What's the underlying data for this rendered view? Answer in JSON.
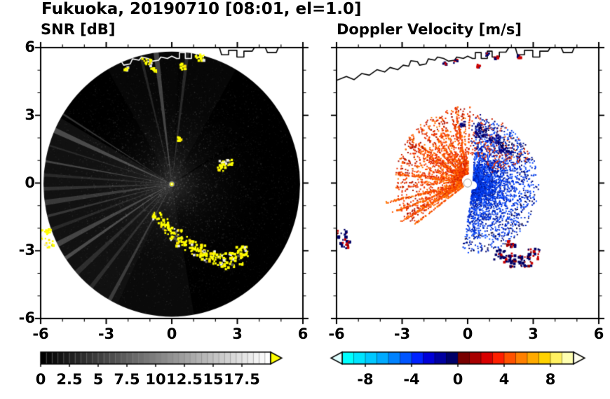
{
  "header": {
    "title": "Fukuoka, 20190710 [08:01, el=1.0]"
  },
  "coastline": {
    "segments": [
      [
        [
          -6.0,
          4.55
        ],
        [
          -5.55,
          4.72
        ],
        [
          -5.2,
          4.58
        ],
        [
          -4.85,
          4.85
        ],
        [
          -4.5,
          4.78
        ],
        [
          -4.15,
          5.02
        ],
        [
          -3.8,
          4.92
        ],
        [
          -3.55,
          5.12
        ],
        [
          -3.2,
          5.02
        ],
        [
          -2.95,
          5.22
        ],
        [
          -2.7,
          5.18
        ],
        [
          -2.6,
          5.42
        ],
        [
          -2.3,
          5.38
        ],
        [
          -2.2,
          5.22
        ],
        [
          -1.9,
          5.28
        ],
        [
          -1.8,
          5.5
        ],
        [
          -1.5,
          5.44
        ],
        [
          -1.38,
          5.58
        ],
        [
          -1.1,
          5.52
        ],
        [
          -0.88,
          5.4
        ],
        [
          -0.6,
          5.44
        ],
        [
          -0.5,
          5.58
        ],
        [
          -0.2,
          5.52
        ],
        [
          0.0,
          5.62
        ],
        [
          0.22,
          5.52
        ],
        [
          0.35,
          5.52
        ],
        [
          0.35,
          5.78
        ],
        [
          0.62,
          5.78
        ],
        [
          0.62,
          5.52
        ],
        [
          0.9,
          5.52
        ],
        [
          0.9,
          5.84
        ],
        [
          1.12,
          5.84
        ],
        [
          1.12,
          5.58
        ],
        [
          1.45,
          5.58
        ],
        [
          1.45,
          5.8
        ],
        [
          1.75,
          5.8
        ],
        [
          1.88,
          6.0
        ]
      ],
      [
        [
          2.18,
          6.0
        ],
        [
          2.28,
          5.68
        ],
        [
          2.6,
          5.68
        ],
        [
          2.6,
          5.88
        ],
        [
          2.98,
          5.88
        ],
        [
          2.98,
          5.58
        ],
        [
          3.3,
          5.58
        ],
        [
          3.3,
          5.84
        ],
        [
          3.68,
          5.84
        ],
        [
          3.78,
          6.0
        ]
      ],
      [
        [
          4.28,
          6.0
        ],
        [
          4.38,
          5.78
        ],
        [
          4.78,
          5.78
        ],
        [
          4.88,
          6.0
        ]
      ]
    ]
  },
  "chart_data": [
    {
      "type": "heatmap",
      "title": "SNR [dB]",
      "xlabel": "",
      "ylabel": "",
      "xlim": [
        -6,
        6
      ],
      "ylim": [
        -6,
        6
      ],
      "xticks": [
        -6,
        -3,
        0,
        3,
        6
      ],
      "yticks": [
        6,
        3,
        0,
        -3,
        -6
      ],
      "xtick_labels": [
        "-6",
        "-3",
        "0",
        "3",
        "6"
      ],
      "ytick_labels": [
        "6",
        "3",
        "0",
        "-3",
        "-6"
      ],
      "minor_tick_step": 1,
      "grid": false,
      "scan": {
        "cx": 0,
        "cy": -0.05,
        "radius": 5.87,
        "base_color": "#000000",
        "echo_color": "#ffff00"
      },
      "bright_rays": [
        148,
        156,
        163,
        170,
        176,
        182,
        188,
        194,
        200,
        207,
        214,
        222,
        231,
        241,
        97,
        104,
        83
      ],
      "dark_rays": [
        {
          "angle": 32,
          "width": 2.4,
          "alpha": 0.75
        },
        {
          "angle": 86,
          "width": 1.1,
          "alpha": 0.35
        }
      ],
      "haze_fans": [
        {
          "a1": 150,
          "a2": 245,
          "alpha": 0.085
        },
        {
          "a1": 245,
          "a2": 280,
          "alpha": 0.05
        },
        {
          "a1": 60,
          "a2": 120,
          "alpha": 0.035
        }
      ],
      "echo_blobs": [
        [
          -0.65,
          -1.45,
          0.22
        ],
        [
          -0.38,
          -1.75,
          0.25
        ],
        [
          -0.12,
          -2.05,
          0.28
        ],
        [
          0.18,
          -2.32,
          0.3
        ],
        [
          0.5,
          -2.58,
          0.28
        ],
        [
          0.85,
          -2.78,
          0.3
        ],
        [
          1.25,
          -3.0,
          0.33
        ],
        [
          1.65,
          -3.22,
          0.35
        ],
        [
          2.1,
          -3.42,
          0.38
        ],
        [
          2.55,
          -3.52,
          0.38
        ],
        [
          2.95,
          -3.35,
          0.33
        ],
        [
          3.22,
          -3.05,
          0.3
        ],
        [
          2.35,
          0.75,
          0.28
        ],
        [
          2.62,
          0.92,
          0.18
        ],
        [
          0.35,
          1.95,
          0.1
        ],
        [
          -1.15,
          5.35,
          0.22
        ],
        [
          -0.82,
          4.98,
          0.13
        ],
        [
          0.55,
          5.15,
          0.16
        ],
        [
          1.3,
          5.55,
          0.2
        ],
        [
          -2.05,
          5.05,
          0.1
        ],
        [
          -5.78,
          -2.3,
          0.3
        ],
        [
          -5.6,
          -2.72,
          0.22
        ]
      ],
      "colorbar": {
        "range": [
          0,
          20
        ],
        "segments": 40,
        "start_color": "#000000",
        "end_color": "#ffffff",
        "over_color": "#ffff00",
        "label_values": [
          0,
          2.5,
          5,
          7.5,
          10,
          12.5,
          15,
          17.5
        ],
        "labels": [
          "0",
          "2.5",
          "5",
          "7.5",
          "10",
          "12.5",
          "15",
          "17.5"
        ]
      }
    },
    {
      "type": "scatter",
      "title": "Doppler Velocity [m/s]",
      "xlabel": "",
      "ylabel": "",
      "xlim": [
        -6,
        6
      ],
      "ylim": [
        -6,
        6
      ],
      "xticks": [
        -6,
        -3,
        0,
        3,
        6
      ],
      "yticks": [
        6,
        3,
        0,
        -3,
        -6
      ],
      "xtick_labels": [
        "-6",
        "-3",
        "0",
        "3",
        "6"
      ],
      "ytick_labels": [],
      "minor_tick_step": 1,
      "grid": false,
      "clusters": [
        {
          "name": "positive-velocity-east",
          "cx": 0.25,
          "cy": -0.1,
          "a1": -100,
          "a2": 88,
          "r0": 0.22,
          "r1": 3.0,
          "count": 3200,
          "pow": 1.7,
          "streaky": false,
          "colors": [
            "#0033dd",
            "#0040ff",
            "#0028bb",
            "#1155ff",
            "#001899"
          ],
          "edge_colors": [
            "#000066",
            "#000044"
          ]
        },
        {
          "name": "negative-velocity-west",
          "cx": 0.0,
          "cy": 0.1,
          "a1": 88,
          "a2": 218,
          "r0": 0.3,
          "r1": 3.3,
          "count": 2600,
          "pow": 1.5,
          "streaky": true,
          "colors": [
            "#ff4400",
            "#ff5c00",
            "#ee2e00",
            "#ff7700",
            "#d42500"
          ],
          "edge_colors": [
            "#aa1100"
          ]
        },
        {
          "name": "sparse-northeast",
          "cx": 0.0,
          "cy": 0.0,
          "a1": 20,
          "a2": 86,
          "r0": 1.2,
          "r1": 3.1,
          "count": 240,
          "pow": 1.0,
          "streaky": false,
          "colors": [
            "#ff4400",
            "#cc2200",
            "#000080"
          ],
          "edge_colors": []
        }
      ],
      "rays": [
        {
          "angle": 193,
          "len": 3.6
        },
        {
          "angle": 201,
          "len": 3.5
        },
        {
          "angle": 209,
          "len": 3.3
        },
        {
          "angle": 173,
          "len": 3.0
        },
        {
          "angle": 217,
          "len": 2.8
        }
      ],
      "ray_colors": [
        "#ff5c00",
        "#ff7700",
        "#ee3b00"
      ],
      "navy_patches": [
        [
          0.55,
          2.3,
          0.35
        ],
        [
          1.25,
          1.95,
          0.25
        ],
        [
          1.7,
          1.5,
          0.2
        ],
        [
          -0.2,
          2.6,
          0.15
        ]
      ],
      "navy_colors": [
        "#000080",
        "#000060",
        "#1a1a90"
      ],
      "arc_blobs": [
        [
          1.5,
          -3.15,
          0.3
        ],
        [
          1.9,
          -3.35,
          0.3
        ],
        [
          2.3,
          -3.5,
          0.35
        ],
        [
          2.7,
          -3.45,
          0.3
        ],
        [
          3.05,
          -3.15,
          0.3
        ],
        [
          2.0,
          -2.7,
          0.2
        ],
        [
          -5.78,
          -2.3,
          0.3
        ],
        [
          -5.6,
          -2.75,
          0.22
        ]
      ],
      "arc_colors": [
        "#000066",
        "#cc0000",
        "#8b0000"
      ],
      "coast_specks": [
        [
          -0.55,
          5.38
        ],
        [
          0.5,
          5.18
        ],
        [
          1.32,
          5.56
        ],
        [
          -1.05,
          5.32
        ],
        [
          2.35,
          5.6
        ],
        [
          0.9,
          5.7
        ]
      ],
      "center_hole": {
        "radius": 0.18,
        "fill": "#ffffff",
        "stroke": "#999999"
      },
      "colorbar": {
        "range": [
          -10,
          10
        ],
        "colors": [
          "#00ffff",
          "#00e4ff",
          "#00c8ff",
          "#00aaff",
          "#0082ff",
          "#0055ff",
          "#0022ff",
          "#0000d8",
          "#0000a0",
          "#000068",
          "#780000",
          "#a80000",
          "#d80000",
          "#ff2000",
          "#ff5200",
          "#ff8000",
          "#ffaa00",
          "#ffd200",
          "#fff060",
          "#ffffb0"
        ],
        "under_color": "#dfffff",
        "over_color": "#fffff0",
        "label_values": [
          -8,
          -4,
          0,
          4,
          8
        ],
        "labels": [
          "-8",
          "-4",
          "0",
          "4",
          "8"
        ]
      }
    }
  ]
}
